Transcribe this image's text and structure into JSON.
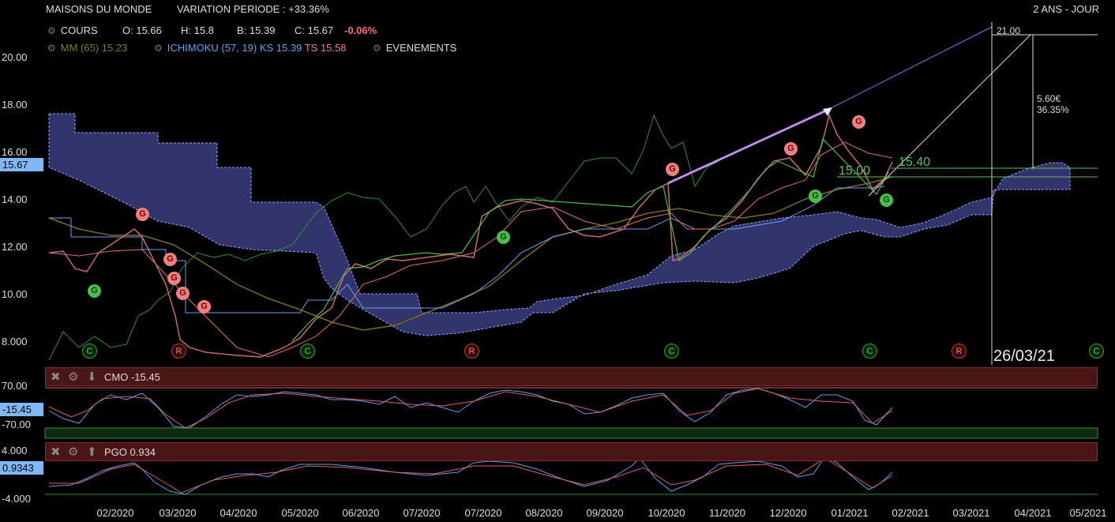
{
  "header": {
    "title": "MAISONS DU MONDE",
    "variation": "VARIATION PERIODE : +33.36%",
    "period": "2 ANS - JOUR"
  },
  "ohlc": {
    "cours_label": "COURS",
    "open": "O: 15.66",
    "high": "H: 15.8",
    "low": "B: 15.39",
    "close": "C: 15.67",
    "change": "-0.06%"
  },
  "indicators": {
    "mm": "MM (65) 15.23",
    "ichimoku": "ICHIMOKU (57, 19)",
    "ks": "KS 15.39",
    "ts": "TS 15.58",
    "events": "EVENEMENTS"
  },
  "price_axis": [
    "20.00",
    "18.00",
    "16.00",
    "14.00",
    "12.00",
    "10.00",
    "8.000"
  ],
  "current_price": "15.67",
  "x_axis": [
    "02/2020",
    "03/2020",
    "04/2020",
    "05/2020",
    "06/2020",
    "07/2020",
    "07/2020",
    "08/2020",
    "09/2020",
    "10/2020",
    "11/2020",
    "12/2020",
    "01/2021",
    "02/2021",
    "03/2021",
    "04/2021",
    "05/2021"
  ],
  "annotations": {
    "target": "21.00",
    "gain_abs": "5.60€",
    "gain_pct": "36.35%",
    "level_1": "15.00",
    "level_2": "15.40",
    "date": "26/03/21"
  },
  "event_markers": {
    "R": "R",
    "C": "C",
    "G": "G"
  },
  "cmo": {
    "title": "CMO -15.45",
    "axis": [
      "70.00",
      "-70.00"
    ],
    "value": "-15.45"
  },
  "pgo": {
    "title": "PGO 0.934",
    "axis": [
      "4.000",
      "-4.000"
    ],
    "value": "0.9343"
  },
  "colors": {
    "cloud": "#3a3a8a",
    "mm": "#8a7a20",
    "ks": "#6aa0f0",
    "ts": "#f08080",
    "lagging": "#3aa03a",
    "trend": "#b070f0"
  },
  "chart_data": {
    "type": "line",
    "ylim": [
      7.3,
      21.2
    ],
    "series": [
      {
        "name": "COURS",
        "x": [
          "2020-01-02",
          "2020-01-20",
          "2020-02-06",
          "2020-02-20",
          "2020-03-02",
          "2020-03-13",
          "2020-03-25",
          "2020-04-10",
          "2020-05-01",
          "2020-05-20",
          "2020-06-01",
          "2020-06-10",
          "2020-06-25",
          "2020-07-10",
          "2020-07-25",
          "2020-08-10",
          "2020-08-25",
          "2020-09-10",
          "2020-09-25",
          "2020-10-02",
          "2020-10-05",
          "2020-10-20",
          "2020-11-05",
          "2020-11-20",
          "2020-12-05",
          "2020-12-15",
          "2020-12-28",
          "2021-01-06",
          "2021-01-15",
          "2021-01-25"
        ],
        "values": [
          11.8,
          11.0,
          12.0,
          12.8,
          11.5,
          10.3,
          7.8,
          7.3,
          7.5,
          8.6,
          11.2,
          10.2,
          11.4,
          11.7,
          11.7,
          13.9,
          13.6,
          12.0,
          12.8,
          14.2,
          10.8,
          11.9,
          13.5,
          14.6,
          15.1,
          14.8,
          17.6,
          16.1,
          14.4,
          15.7
        ]
      }
    ]
  }
}
